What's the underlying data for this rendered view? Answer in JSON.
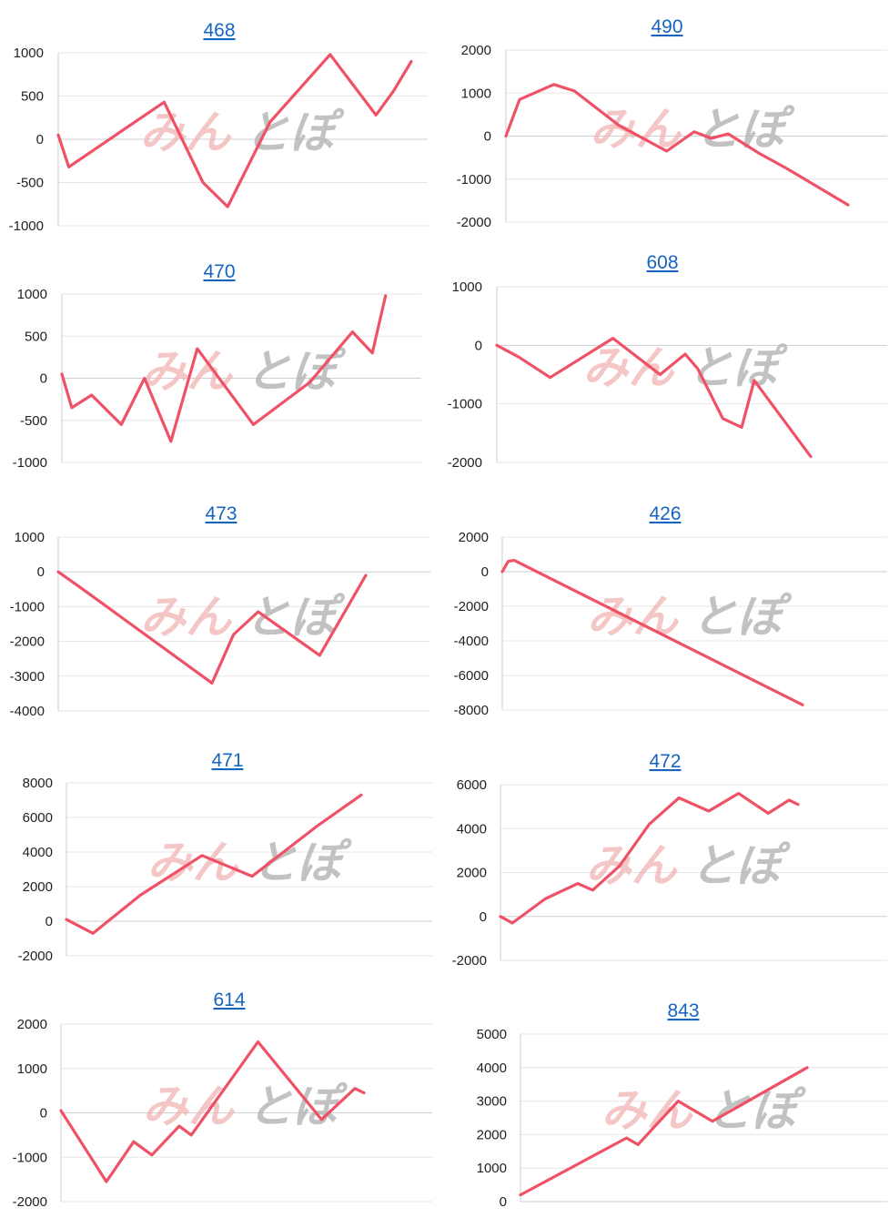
{
  "watermark": {
    "part1": "みん",
    "part2": "とぽ"
  },
  "colors": {
    "line": "#ef5166",
    "title_link": "#1565c0"
  },
  "chart_data": [
    {
      "type": "line",
      "title": "468",
      "ylim": [
        -1000,
        1000
      ],
      "yticks": [
        1000,
        500,
        0,
        -500,
        -1000
      ],
      "ytick_labels": [
        "1000",
        "500",
        "0",
        "-500",
        "-1000"
      ],
      "x": [
        0,
        0.03,
        0.3,
        0.41,
        0.48,
        0.6,
        0.77,
        0.9,
        0.95,
        1.0
      ],
      "y": [
        50,
        -320,
        430,
        -500,
        -780,
        200,
        980,
        280,
        560,
        900
      ]
    },
    {
      "type": "line",
      "title": "490",
      "ylim": [
        -2000,
        2000
      ],
      "yticks": [
        2000,
        1000,
        0,
        -1000,
        -2000
      ],
      "ytick_labels": [
        "2000",
        "1000",
        "0",
        "-1000",
        "-2000"
      ],
      "x": [
        0,
        0.04,
        0.14,
        0.2,
        0.33,
        0.47,
        0.55,
        0.6,
        0.65,
        0.74,
        0.82,
        1.0
      ],
      "y": [
        0,
        850,
        1200,
        1050,
        250,
        -350,
        100,
        -50,
        50,
        -400,
        -750,
        -1600
      ]
    },
    {
      "type": "line",
      "title": "470",
      "ylim": [
        -1000,
        1000
      ],
      "yticks": [
        1000,
        500,
        0,
        -500,
        -1000
      ],
      "ytick_labels": [
        "1000",
        "500",
        "0",
        "-500",
        "-1000"
      ],
      "x": [
        0,
        0.03,
        0.09,
        0.18,
        0.25,
        0.33,
        0.41,
        0.58,
        0.75,
        0.88,
        0.94,
        0.98
      ],
      "y": [
        50,
        -350,
        -200,
        -550,
        0,
        -750,
        350,
        -550,
        -50,
        550,
        300,
        980
      ]
    },
    {
      "type": "line",
      "title": "608",
      "ylim": [
        -2000,
        1000
      ],
      "yticks": [
        1000,
        0,
        -1000,
        -2000
      ],
      "ytick_labels": [
        "1000",
        "0",
        "-1000",
        "-2000"
      ],
      "x": [
        0,
        0.07,
        0.17,
        0.37,
        0.52,
        0.6,
        0.64,
        0.72,
        0.78,
        0.82,
        1.0
      ],
      "y": [
        0,
        -200,
        -550,
        120,
        -500,
        -150,
        -400,
        -1250,
        -1400,
        -600,
        -1900
      ]
    },
    {
      "type": "line",
      "title": "473",
      "ylim": [
        -4000,
        1000
      ],
      "yticks": [
        1000,
        0,
        -1000,
        -2000,
        -3000,
        -4000
      ],
      "ytick_labels": [
        "1000",
        "0",
        "-1000",
        "-2000",
        "-3000",
        "-4000"
      ],
      "x": [
        0,
        0.08,
        0.5,
        0.57,
        0.65,
        0.85,
        1.0
      ],
      "y": [
        0,
        -500,
        -3200,
        -1800,
        -1150,
        -2400,
        -100
      ]
    },
    {
      "type": "line",
      "title": "426",
      "ylim": [
        -8000,
        2000
      ],
      "yticks": [
        2000,
        0,
        -2000,
        -4000,
        -6000,
        -8000
      ],
      "ytick_labels": [
        "2000",
        "0",
        "-2000",
        "-4000",
        "-6000",
        "-8000"
      ],
      "x": [
        0,
        0.02,
        0.04,
        1.0
      ],
      "y": [
        0,
        600,
        650,
        -7700
      ]
    },
    {
      "type": "line",
      "title": "471",
      "ylim": [
        -2000,
        8000
      ],
      "yticks": [
        8000,
        6000,
        4000,
        2000,
        0,
        -2000
      ],
      "ytick_labels": [
        "8000",
        "6000",
        "4000",
        "2000",
        "0",
        "-2000"
      ],
      "x": [
        0,
        0.09,
        0.25,
        0.46,
        0.63,
        0.85,
        1.0
      ],
      "y": [
        100,
        -700,
        1500,
        3800,
        2600,
        5500,
        7300
      ]
    },
    {
      "type": "line",
      "title": "472",
      "ylim": [
        -2000,
        6000
      ],
      "yticks": [
        6000,
        4000,
        2000,
        0,
        -2000
      ],
      "ytick_labels": [
        "6000",
        "4000",
        "2000",
        "0",
        "-2000"
      ],
      "x": [
        0,
        0.04,
        0.15,
        0.26,
        0.31,
        0.4,
        0.5,
        0.6,
        0.7,
        0.8,
        0.9,
        0.97,
        1.0
      ],
      "y": [
        0,
        -300,
        800,
        1500,
        1200,
        2300,
        4200,
        5400,
        4800,
        5600,
        4700,
        5300,
        5100
      ]
    },
    {
      "type": "line",
      "title": "614",
      "ylim": [
        -2000,
        2000
      ],
      "yticks": [
        2000,
        1000,
        0,
        -1000,
        -2000
      ],
      "ytick_labels": [
        "2000",
        "1000",
        "0",
        "-1000",
        "-2000"
      ],
      "x": [
        0,
        0.15,
        0.24,
        0.3,
        0.39,
        0.43,
        0.65,
        0.86,
        0.97,
        1.0
      ],
      "y": [
        50,
        -1550,
        -650,
        -950,
        -300,
        -500,
        1600,
        -150,
        550,
        450
      ]
    },
    {
      "type": "line",
      "title": "843",
      "ylim": [
        0,
        5000
      ],
      "yticks": [
        5000,
        4000,
        3000,
        2000,
        1000,
        0
      ],
      "ytick_labels": [
        "5000",
        "4000",
        "3000",
        "2000",
        "1000",
        "0"
      ],
      "x": [
        0,
        0.37,
        0.41,
        0.55,
        0.67,
        1.0
      ],
      "y": [
        200,
        1900,
        1700,
        3000,
        2400,
        4000
      ]
    }
  ]
}
